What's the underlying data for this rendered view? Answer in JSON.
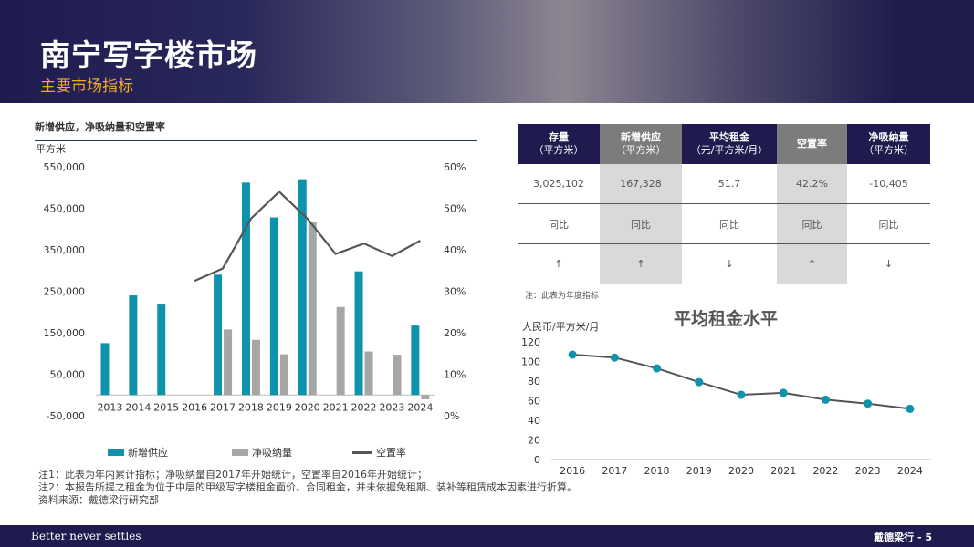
{
  "header": {
    "title": "南宁写字楼市场",
    "subtitle": "主要市场指标"
  },
  "left_panel": {
    "title": "新增供应，净吸纳量和空置率",
    "y_unit": "平方米",
    "legend": [
      "新增供应",
      "净吸纳量",
      "空置率"
    ]
  },
  "table": {
    "headers": [
      {
        "title": "存量",
        "sub": "（平方米）"
      },
      {
        "title": "新增供应",
        "sub": "（平方米）"
      },
      {
        "title": "平均租金",
        "sub": "（元/平方米/月）"
      },
      {
        "title": "空置率",
        "sub": ""
      },
      {
        "title": "净吸纳量",
        "sub": "（平方米）"
      }
    ],
    "values": [
      "3,025,102",
      "167,328",
      "51.7",
      "42.2%",
      "-10,405"
    ],
    "yoy": [
      "同比",
      "同比",
      "同比",
      "同比",
      "同比"
    ],
    "arrows": [
      "↑",
      "↑",
      "↓",
      "↑",
      "↓"
    ],
    "note": "注：此表为年度指标"
  },
  "rent_panel": {
    "title": "平均租金水平",
    "unit": "人民币/平方米/月"
  },
  "notes": [
    "注1：此表为年内累计指标；净吸纳量自2017年开始统计，空置率自2016年开始统计；",
    "注2：本报告所提之租金为位于中层的甲级写字楼租金面价、合同租金，并未依据免租期、装补等租赁成本因素进行折算。",
    "资料来源：戴德梁行研究部"
  ],
  "footer": {
    "left": "Better never settles",
    "right": "戴德梁行 - 5"
  },
  "colors": {
    "navy": "#1f1b4f",
    "teal": "#0f93ad",
    "grey": "#a6a6a6",
    "line": "#555555",
    "accent": "#f0a92b"
  },
  "chart_data": [
    {
      "type": "bar",
      "title": "新增供应，净吸纳量和空置率",
      "ylabel": "平方米",
      "categories": [
        "2013",
        "2014",
        "2015",
        "2016",
        "2017",
        "2018",
        "2019",
        "2020",
        "2021",
        "2022",
        "2023",
        "2024"
      ],
      "ylim": [
        -50000,
        550000
      ],
      "y_ticks": [
        "550,000",
        "450,000",
        "350,000",
        "250,000",
        "150,000",
        "50,000",
        "-50,000"
      ],
      "y2lim": [
        0,
        60
      ],
      "y2_ticks": [
        "60%",
        "50%",
        "40%",
        "30%",
        "20%",
        "10%",
        "0%"
      ],
      "series": [
        {
          "name": "新增供应",
          "type": "bar",
          "values": [
            125000,
            240000,
            218000,
            0,
            290000,
            512000,
            428000,
            520000,
            null,
            298000,
            null,
            167328
          ]
        },
        {
          "name": "净吸纳量",
          "type": "bar",
          "values": [
            null,
            null,
            null,
            null,
            158000,
            133000,
            98000,
            418000,
            212000,
            105000,
            97000,
            -10405
          ]
        },
        {
          "name": "空置率",
          "type": "line",
          "axis": "right",
          "values": [
            null,
            null,
            null,
            32.5,
            35.5,
            47.5,
            54,
            47.5,
            39,
            41.5,
            38.5,
            42.2
          ]
        }
      ],
      "legend": "bottom"
    },
    {
      "type": "line",
      "title": "平均租金水平",
      "ylabel": "人民币/平方米/月",
      "x": [
        "2016",
        "2017",
        "2018",
        "2019",
        "2020",
        "2021",
        "2022",
        "2023",
        "2024"
      ],
      "series": [
        {
          "name": "平均租金",
          "values": [
            107,
            104,
            93,
            79,
            66,
            68,
            61,
            57,
            51.7
          ]
        }
      ],
      "ylim": [
        0,
        120
      ],
      "y_ticks": [
        "120",
        "100",
        "80",
        "60",
        "40",
        "20",
        "0"
      ]
    }
  ]
}
